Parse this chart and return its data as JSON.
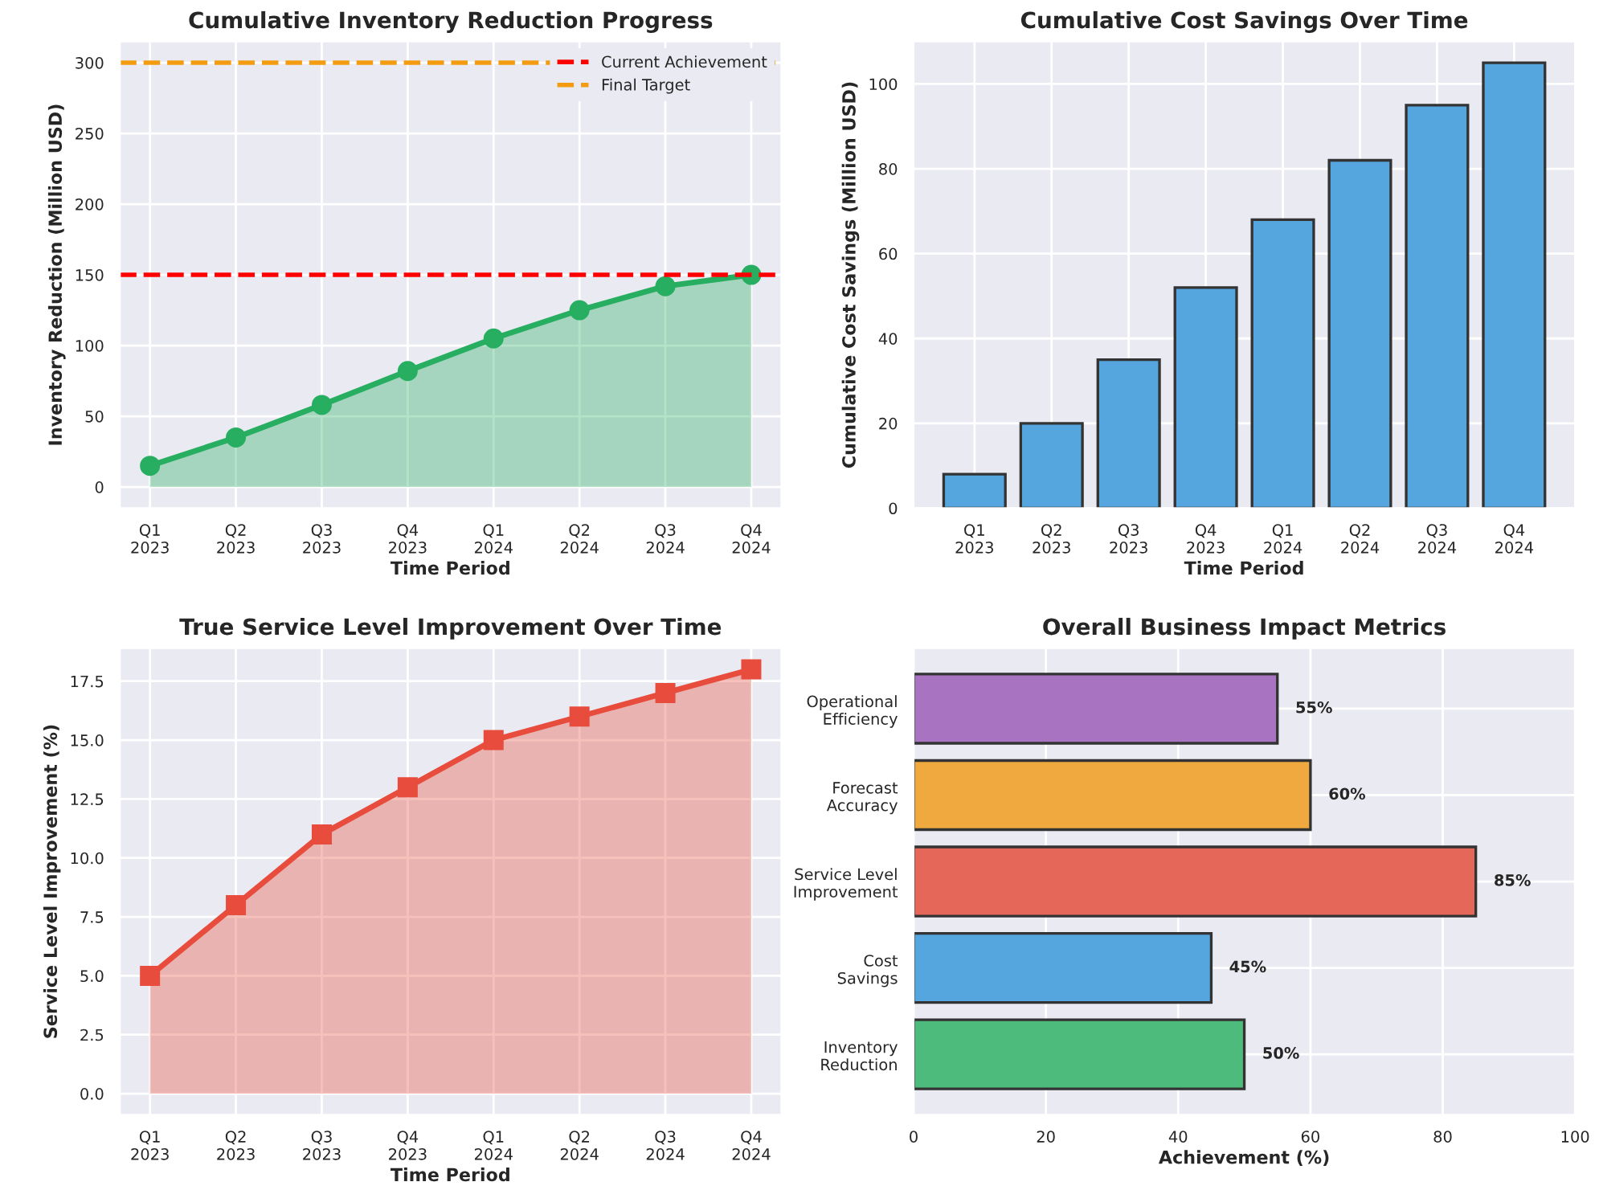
{
  "chart_data": [
    {
      "type": "area",
      "title": "Cumulative Inventory Reduction Progress",
      "xlabel": "Time Period",
      "ylabel": "Inventory Reduction (Million USD)",
      "categories": [
        "Q1\n2023",
        "Q2\n2023",
        "Q3\n2023",
        "Q4\n2023",
        "Q1\n2024",
        "Q2\n2024",
        "Q3\n2024",
        "Q4\n2024"
      ],
      "series": [
        {
          "color": "#27ae60",
          "values": [
            15,
            35,
            58,
            82,
            105,
            125,
            142,
            150
          ]
        }
      ],
      "marker": "circle",
      "ylim": [
        -15,
        315
      ],
      "yticks": [
        0,
        50,
        100,
        150,
        200,
        250,
        300
      ],
      "grid": true,
      "legend": "top right",
      "ref_lines": [
        {
          "axis": "y",
          "value": 150,
          "label": "Current Achievement",
          "color": "#ff0000",
          "line_style": "dashed"
        },
        {
          "axis": "y",
          "value": 300,
          "label": "Final Target",
          "color": "#f39c12",
          "line_style": "dashed"
        }
      ]
    },
    {
      "type": "bar",
      "title": "Cumulative Cost Savings Over Time",
      "xlabel": "Time Period",
      "ylabel": "Cumulative Cost Savings (Million USD)",
      "categories": [
        "Q1\n2023",
        "Q2\n2023",
        "Q3\n2023",
        "Q4\n2023",
        "Q1\n2024",
        "Q2\n2024",
        "Q3\n2024",
        "Q4\n2024"
      ],
      "series": [
        {
          "color": "#55a5df",
          "values": [
            8,
            20,
            35,
            52,
            68,
            82,
            95,
            105
          ]
        }
      ],
      "ylim": [
        0,
        110
      ],
      "yticks": [
        0,
        20,
        40,
        60,
        80,
        100
      ],
      "grid": true
    },
    {
      "type": "area",
      "title": "True Service Level Improvement Over Time",
      "xlabel": "Time Period",
      "ylabel": "Service Level Improvement (%)",
      "categories": [
        "Q1\n2023",
        "Q2\n2023",
        "Q3\n2023",
        "Q4\n2023",
        "Q1\n2024",
        "Q2\n2024",
        "Q3\n2024",
        "Q4\n2024"
      ],
      "series": [
        {
          "color": "#e74c3c",
          "values": [
            5,
            8,
            11,
            13,
            15,
            16,
            17,
            18
          ]
        }
      ],
      "marker": "square",
      "ylim": [
        -0.9,
        18.9
      ],
      "yticks": [
        {
          "value": 0,
          "label": "0.0"
        },
        2.5,
        {
          "value": 5,
          "label": "5.0"
        },
        7.5,
        {
          "value": 10,
          "label": "10.0"
        },
        12.5,
        {
          "value": 15,
          "label": "15.0"
        },
        17.5
      ],
      "grid": true
    },
    {
      "type": "bar",
      "orientation": "horizontal",
      "title": "Overall Business Impact Metrics",
      "xlabel": "Achievement (%)",
      "categories": [
        "Operational\nEfficiency",
        "Forecast\nAccuracy",
        "Service Level\nImprovement",
        "Cost\nSavings",
        "Inventory\nReduction"
      ],
      "values": [
        55,
        60,
        85,
        45,
        50
      ],
      "colors": [
        "#a874c2",
        "#f0a93f",
        "#e5675a",
        "#55a5df",
        "#4cbb7b"
      ],
      "value_labels": [
        "55%",
        "60%",
        "85%",
        "45%",
        "50%"
      ],
      "xlim": [
        0,
        100
      ],
      "xticks": [
        0,
        20,
        40,
        60,
        80,
        100
      ],
      "grid": true
    }
  ]
}
